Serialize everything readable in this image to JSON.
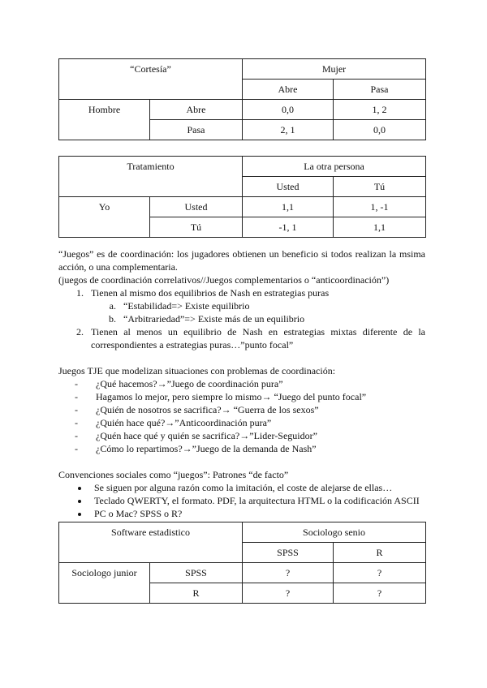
{
  "table1": {
    "title": "“Cortesía”",
    "col_player": "Mujer",
    "cols": [
      "Abre",
      "Pasa"
    ],
    "row_player": "Hombre",
    "rows": [
      {
        "label": "Abre",
        "cells": [
          "0,0",
          "1, 2"
        ]
      },
      {
        "label": "Pasa",
        "cells": [
          "2, 1",
          "0,0"
        ]
      }
    ]
  },
  "table2": {
    "title": "Tratamiento",
    "col_player": "La otra persona",
    "cols": [
      "Usted",
      "Tú"
    ],
    "row_player": "Yo",
    "rows": [
      {
        "label": "Usted",
        "cells": [
          "1,1",
          "1, -1"
        ]
      },
      {
        "label": "Tú",
        "cells": [
          "-1, 1",
          "1,1"
        ]
      }
    ]
  },
  "section1": {
    "intro": "“Juegos” es de coordinación: los jugadores obtienen un beneficio si todos realizan la msima acción, o una complementaria.",
    "note": "(juegos de coordinación correlativos//Juegos complementarios o “anticoordinación”)",
    "items": [
      "Tienen al mismo dos equilibrios de Nash en estrategias puras",
      "Tienen al menos un equilibrio de Nash en estrategias mixtas diferente de la correspondientes a estrategias puras…”punto focal”"
    ],
    "subitems": [
      "“Estabilidad=> Existe equilibrio",
      "“Arbitrariedad”=> Existe más de un equilibrio"
    ]
  },
  "section2": {
    "heading": "Juegos TJE que modelizan situaciones con problemas de coordinación:",
    "items": [
      "¿Qué hacemos?→”Juego de coordinación pura”",
      "Hagamos lo mejor, pero siempre lo mismo→ “Juego del punto focal”",
      "¿Quién de nosotros se sacrifica?→ “Guerra de los sexos”",
      "¿Quién hace qué?→”Anticoordinación pura”",
      "¿Quén hace qué y quién se sacrifica?→”Lider-Seguidor”",
      "¿Cómo lo repartimos?→”Juego de la demanda de Nash”"
    ]
  },
  "section3": {
    "heading": "Convenciones sociales como “juegos”: Patrones “de facto”",
    "items": [
      "Se siguen por alguna razón como la imitación, el coste de alejarse de ellas…",
      "Teclado QWERTY, el formato. PDF, la arquitectura HTML o la codificación ASCII",
      "PC o Mac? SPSS o R?"
    ]
  },
  "table3": {
    "title": "Software estadistico",
    "col_player": "Sociologo senio",
    "cols": [
      "SPSS",
      "R"
    ],
    "row_player": "Sociologo junior",
    "rows": [
      {
        "label": "SPSS",
        "cells": [
          "?",
          "?"
        ]
      },
      {
        "label": "R",
        "cells": [
          "?",
          "?"
        ]
      }
    ]
  }
}
